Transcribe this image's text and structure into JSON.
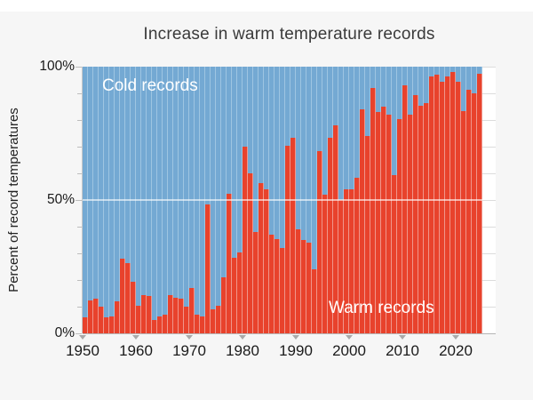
{
  "figure": {
    "title": "Increase in warm temperature records",
    "y_axis_title": "Percent of record temperatures",
    "inner_labels": {
      "cold": "Cold records",
      "warm": "Warm records"
    },
    "y_tick_labels": [
      "100%",
      "50%",
      "0%"
    ],
    "x_tick_labels": [
      "1950",
      "1960",
      "1970",
      "1980",
      "1990",
      "2000",
      "2010",
      "2020"
    ],
    "colors": {
      "warm_bar": "#e8422c",
      "warm_bar_stripe": "#f0968b",
      "cold_bar": "#74a9d3",
      "cold_bar_stripe": "#9ec5e2",
      "page_background": "#f6f6f6",
      "plot_background": "#ffffff",
      "gridline": "#dcdcdc",
      "fifty_percent_line": "rgba(255,255,255,0.6)",
      "tick_triangle": "#a9a9a9",
      "title_text": "#3a3a3a",
      "tick_text": "#1a1a1a",
      "label_text_on_bars": "#ffffff"
    }
  },
  "chart_data": {
    "type": "bar",
    "stacked": true,
    "title": "Increase in warm temperature records",
    "xlabel": "",
    "ylabel": "Percent of record temperatures",
    "ylim": [
      0,
      100
    ],
    "grid": "horizontal gridlines every 10%, highlighted white line at 50%",
    "legend_position": "text labels inside plot area (Cold records top-left, Warm records bottom-right)",
    "x_start_year": 1950,
    "x_tick_years": [
      1950,
      1960,
      1970,
      1980,
      1990,
      2000,
      2010,
      2020
    ],
    "series": [
      {
        "name": "Warm records",
        "unit": "% of record temperatures",
        "values": [
          6,
          12.5,
          13,
          10,
          6,
          6.5,
          12,
          28,
          26.5,
          19.5,
          10.5,
          14.5,
          14,
          5,
          6.5,
          7,
          14.5,
          13.5,
          13,
          10,
          17,
          7,
          6.5,
          48.5,
          9,
          10.5,
          21,
          52.5,
          28.5,
          30.5,
          70,
          60,
          38,
          56.5,
          54,
          37,
          35.5,
          32,
          70.5,
          73.5,
          39,
          35,
          34,
          24,
          68.5,
          52,
          73.5,
          78,
          50,
          54,
          54,
          58.5,
          84,
          74,
          92,
          83,
          85,
          82,
          59.5,
          80.5,
          93,
          82,
          89.5,
          85.5,
          86.5,
          96.5,
          97,
          94.5,
          96.5,
          98,
          94.5,
          83.5,
          91.5,
          90,
          97.5
        ]
      },
      {
        "name": "Cold records",
        "unit": "% of record temperatures",
        "derivation": "100 minus warm value for each year (stacked remainder)"
      }
    ]
  }
}
